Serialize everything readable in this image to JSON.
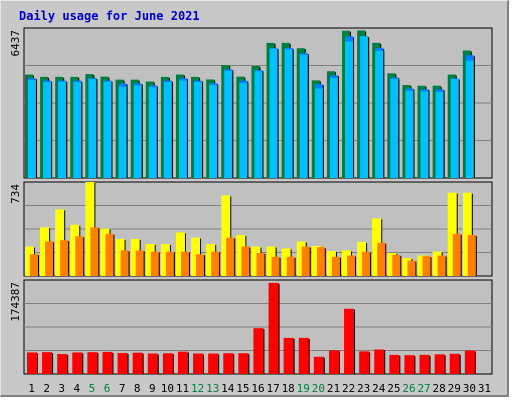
{
  "chart_data": {
    "type": "bar",
    "title": "Daily usage for June 2021",
    "colors": {
      "hits": "#008040",
      "files": "#0080ff",
      "pages": "#00c0ff",
      "visits": "#ffff00",
      "sites": "#ff8000",
      "kbytes": "#ff0000",
      "weekend_label": "#008040",
      "panel_bg": "#c0c0c0",
      "frame_bg": "#c8c8c8"
    },
    "days": [
      "1",
      "2",
      "3",
      "4",
      "5",
      "6",
      "7",
      "8",
      "9",
      "10",
      "11",
      "12",
      "13",
      "14",
      "15",
      "16",
      "17",
      "18",
      "19",
      "20",
      "21",
      "22",
      "23",
      "24",
      "25",
      "26",
      "27",
      "28",
      "29",
      "30",
      "31"
    ],
    "weekend_days": [
      "5",
      "6",
      "12",
      "13",
      "19",
      "20",
      "26",
      "27"
    ],
    "panels": [
      {
        "name": "hits-files-pages",
        "max_label": "6437",
        "max": 6437,
        "series": [
          {
            "key": "hits",
            "values": [
              4440,
              4340,
              4340,
              4340,
              4460,
              4350,
              4220,
              4220,
              4140,
              4340,
              4440,
              4340,
              4230,
              4850,
              4350,
              4810,
              5800,
              5800,
              5570,
              4190,
              4580,
              6320,
              6330,
              5800,
              4490,
              3990,
              3960,
              3960,
              4440,
              5470,
              0
            ]
          },
          {
            "key": "files",
            "values": [
              4280,
              4180,
              4180,
              4180,
              4290,
              4180,
              4060,
              4060,
              3980,
              4180,
              4280,
              4180,
              4070,
              4670,
              4180,
              4630,
              5580,
              5580,
              5360,
              4030,
              4410,
              6080,
              6090,
              5580,
              4320,
              3840,
              3810,
              3810,
              4270,
              5270,
              0
            ]
          },
          {
            "key": "pages",
            "values": [
              4200,
              4120,
              4130,
              4110,
              4240,
              4130,
              3920,
              3970,
              3900,
              4120,
              4180,
              4120,
              4000,
              4600,
              4080,
              4580,
              5550,
              5520,
              5290,
              3840,
              4300,
              5860,
              6080,
              5450,
              4250,
              3750,
              3720,
              3700,
              4250,
              5030,
              0
            ]
          }
        ]
      },
      {
        "name": "visits-sites",
        "max_label": "734",
        "max": 734,
        "series": [
          {
            "key": "visits",
            "values": [
              230,
              380,
              520,
              400,
              734,
              370,
              290,
              290,
              250,
              250,
              340,
              300,
              250,
              630,
              320,
              230,
              230,
              215,
              270,
              235,
              195,
              200,
              265,
              450,
              180,
              140,
              160,
              190,
              650,
              650,
              0
            ]
          },
          {
            "key": "sites",
            "values": [
              170,
              270,
              280,
              310,
              380,
              330,
              200,
              200,
              190,
              190,
              190,
              170,
              190,
              300,
              230,
              180,
              150,
              150,
              230,
              225,
              150,
              160,
              190,
              260,
              165,
              120,
              155,
              160,
              330,
              320,
              0
            ]
          }
        ]
      },
      {
        "name": "kbytes",
        "max_label": "174387",
        "max": 174387,
        "series": [
          {
            "key": "kbytes",
            "values": [
              40000,
              40500,
              37000,
              40000,
              40500,
              41000,
              39000,
              39500,
              38000,
              38500,
              41500,
              38000,
              38000,
              38500,
              38500,
              85000,
              169000,
              67000,
              67000,
              32000,
              44000,
              121000,
              42000,
              45500,
              35500,
              35000,
              35500,
              36500,
              37500,
              43500,
              0
            ]
          }
        ]
      }
    ]
  }
}
